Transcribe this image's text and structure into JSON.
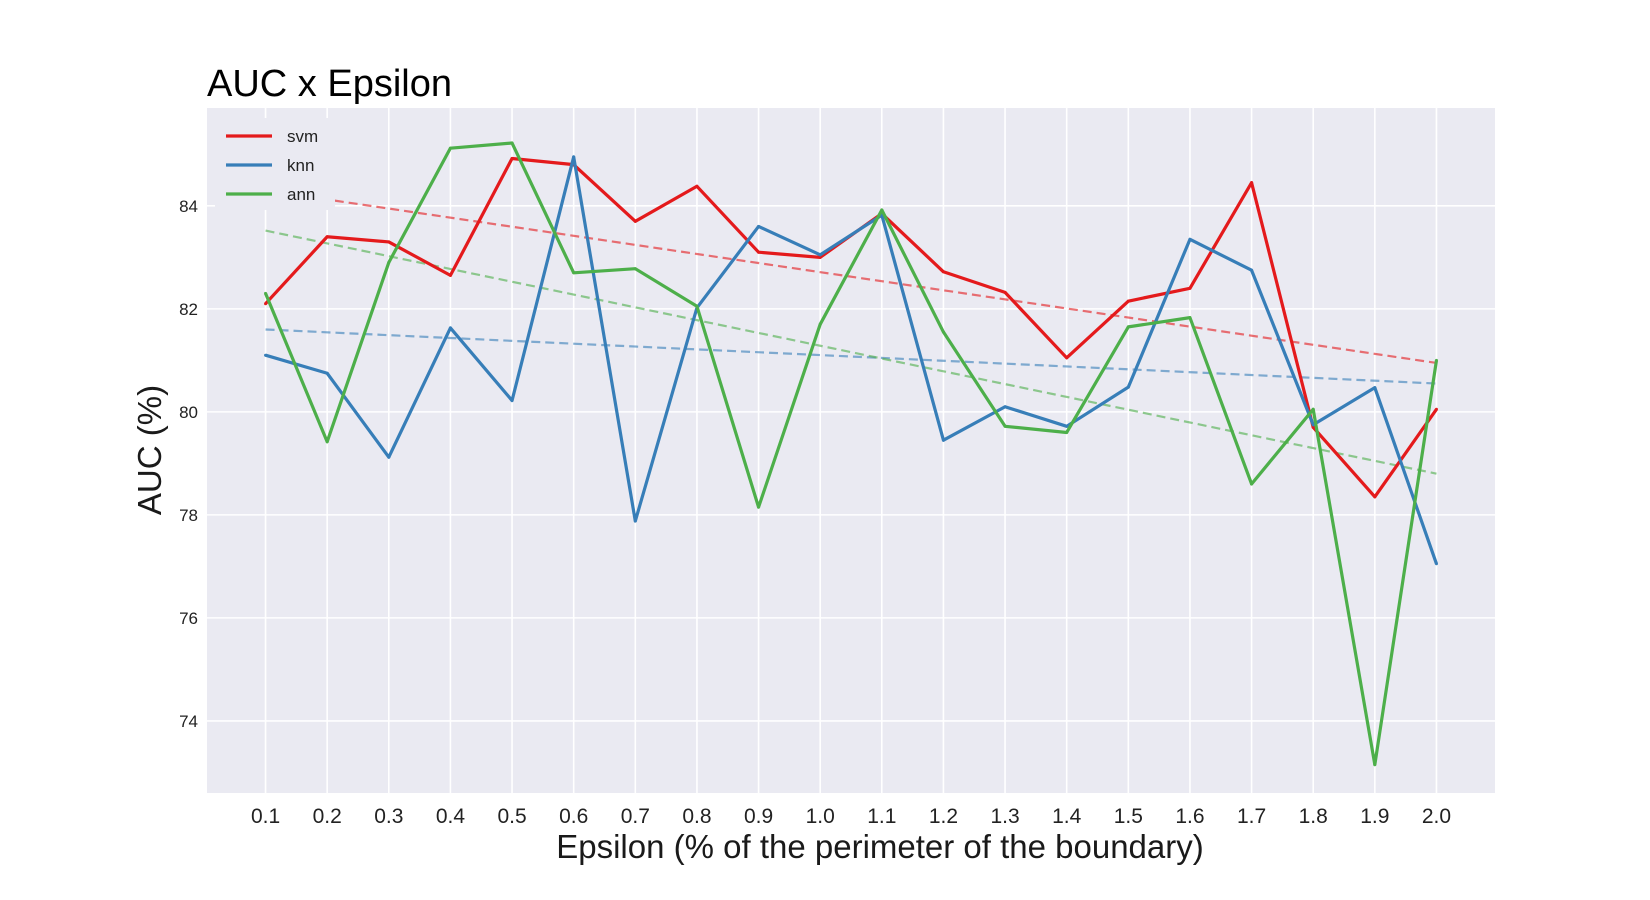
{
  "chart_data": {
    "type": "line",
    "title": "AUC x Epsilon",
    "xlabel": "Epsilon (% of the perimeter of the boundary)",
    "ylabel": "AUC (%)",
    "x": [
      0.1,
      0.2,
      0.3,
      0.4,
      0.5,
      0.6,
      0.7,
      0.8,
      0.9,
      1.0,
      1.1,
      1.2,
      1.3,
      1.4,
      1.5,
      1.6,
      1.7,
      1.8,
      1.9,
      2.0
    ],
    "x_tick_labels": [
      "0.1",
      "0.2",
      "0.3",
      "0.4",
      "0.5",
      "0.6",
      "0.7",
      "0.8",
      "0.9",
      "1.0",
      "1.1",
      "1.2",
      "1.3",
      "1.4",
      "1.5",
      "1.6",
      "1.7",
      "1.8",
      "1.9",
      "2.0"
    ],
    "y_ticks": [
      74,
      76,
      78,
      80,
      82,
      84
    ],
    "xlim": [
      0.005,
      2.095
    ],
    "ylim": [
      72.6,
      85.9
    ],
    "grid": true,
    "legend_position": "top-left",
    "series": [
      {
        "name": "svm",
        "color": "#e41a1c",
        "values": [
          82.1,
          83.4,
          83.3,
          82.65,
          84.92,
          84.8,
          83.7,
          84.38,
          83.1,
          83.0,
          83.85,
          82.72,
          82.32,
          81.05,
          82.15,
          82.4,
          84.45,
          79.7,
          78.35,
          80.05
        ],
        "trend": [
          84.3,
          80.95
        ]
      },
      {
        "name": "knn",
        "color": "#377eb8",
        "values": [
          81.1,
          80.75,
          79.12,
          81.63,
          80.22,
          84.95,
          77.88,
          82.02,
          83.6,
          83.05,
          83.82,
          79.45,
          80.1,
          79.72,
          80.48,
          83.35,
          82.75,
          79.75,
          80.47,
          77.05
        ],
        "trend": [
          81.6,
          80.55
        ]
      },
      {
        "name": "ann",
        "color": "#4daf4a",
        "values": [
          82.3,
          79.42,
          82.9,
          85.12,
          85.22,
          82.7,
          82.78,
          82.05,
          78.15,
          81.7,
          83.92,
          81.55,
          79.72,
          79.6,
          81.65,
          81.83,
          78.6,
          80.05,
          73.15,
          81.0
        ],
        "trend": [
          83.52,
          78.8
        ]
      }
    ]
  }
}
